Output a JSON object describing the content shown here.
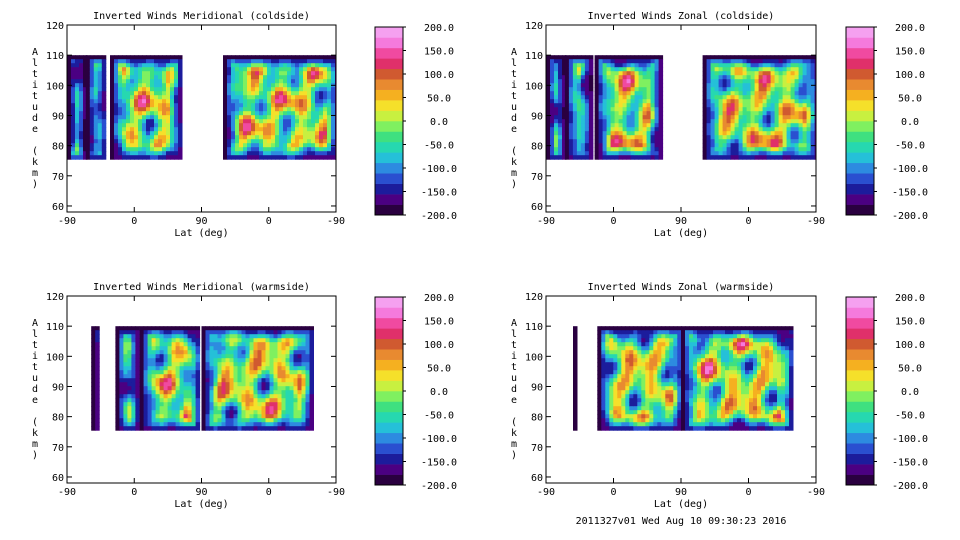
{
  "footer": "2011327v01 Wed Aug 10 09:30:23 2016",
  "colorbar": {
    "labels": [
      "200.0",
      "150.0",
      "100.0",
      "50.0",
      "0.0",
      "-50.0",
      "-100.0",
      "-150.0",
      "-200.0"
    ],
    "range": [
      -200,
      200
    ],
    "colors": [
      "#2a0040",
      "#4b0082",
      "#1c1c9c",
      "#2a4fd0",
      "#2d8be0",
      "#25c0d8",
      "#26d8b0",
      "#3fe080",
      "#7ff060",
      "#c8f040",
      "#f5e02a",
      "#f5b020",
      "#e88a30",
      "#d05a30",
      "#e0306a",
      "#f04aa0",
      "#f57adc",
      "#f5a0f0"
    ]
  },
  "chart_data": [
    {
      "type": "heatmap",
      "title": "Inverted Winds Meridional (coldside)",
      "xlabel": "Lat (deg)",
      "ylabel": "Altitude (km)",
      "xticks": [
        "-90",
        "0",
        "90",
        "0",
        "-90"
      ],
      "yticks": [
        "60",
        "70",
        "80",
        "90",
        "100",
        "110",
        "120"
      ],
      "ylim": [
        58,
        120
      ],
      "colorbar_range": [
        -200,
        200
      ]
    },
    {
      "type": "heatmap",
      "title": "Inverted Winds Zonal (coldside)",
      "xlabel": "Lat (deg)",
      "ylabel": "Altitude (km)",
      "xticks": [
        "-90",
        "0",
        "90",
        "0",
        "-90"
      ],
      "yticks": [
        "60",
        "70",
        "80",
        "90",
        "100",
        "110",
        "120"
      ],
      "ylim": [
        58,
        120
      ],
      "colorbar_range": [
        -200,
        200
      ]
    },
    {
      "type": "heatmap",
      "title": "Inverted Winds Meridional (warmside)",
      "xlabel": "Lat (deg)",
      "ylabel": "Altitude (km)",
      "xticks": [
        "-90",
        "0",
        "90",
        "0",
        "-90"
      ],
      "yticks": [
        "60",
        "70",
        "80",
        "90",
        "100",
        "110",
        "120"
      ],
      "ylim": [
        58,
        120
      ],
      "colorbar_range": [
        -200,
        200
      ]
    },
    {
      "type": "heatmap",
      "title": "Inverted Winds Zonal (warmside)",
      "xlabel": "Lat (deg)",
      "ylabel": "Altitude (km)",
      "xticks": [
        "-90",
        "0",
        "90",
        "0",
        "-90"
      ],
      "yticks": [
        "60",
        "70",
        "80",
        "90",
        "100",
        "110",
        "120"
      ],
      "ylim": [
        58,
        120
      ],
      "colorbar_range": [
        -200,
        200
      ]
    }
  ]
}
